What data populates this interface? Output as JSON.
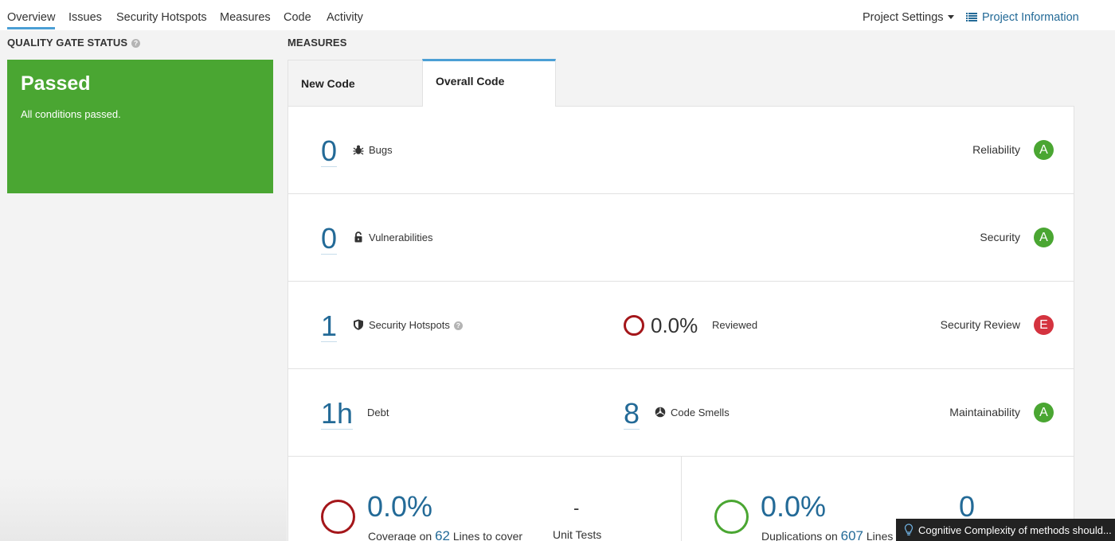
{
  "nav": {
    "items": [
      "Overview",
      "Issues",
      "Security Hotspots",
      "Measures",
      "Code",
      "Activity"
    ],
    "active": "Overview",
    "project_settings": "Project Settings",
    "project_information": "Project Information"
  },
  "quality_gate": {
    "section_title": "QUALITY GATE STATUS",
    "status": "Passed",
    "message": "All conditions passed.",
    "color": "#4aa632"
  },
  "measures": {
    "section_title": "MEASURES",
    "tabs": [
      "New Code",
      "Overall Code"
    ],
    "active_tab": "Overall Code",
    "reliability": {
      "value": "0",
      "label": "Bugs",
      "rating_label": "Reliability",
      "rating": "A",
      "rating_color": "#4aa632"
    },
    "security": {
      "value": "0",
      "label": "Vulnerabilities",
      "rating_label": "Security",
      "rating": "A",
      "rating_color": "#4aa632"
    },
    "hotspots": {
      "value": "1",
      "label": "Security Hotspots",
      "reviewed_pct": "0.0%",
      "reviewed_label": "Reviewed",
      "rating_label": "Security Review",
      "rating": "E",
      "rating_color": "#d4333f"
    },
    "maintainability": {
      "debt_value": "1h",
      "debt_label": "Debt",
      "smells_value": "8",
      "smells_label": "Code Smells",
      "rating_label": "Maintainability",
      "rating": "A",
      "rating_color": "#4aa632"
    },
    "coverage": {
      "pct": "0.0%",
      "text_before": "Coverage on",
      "lines": "62",
      "text_after": "Lines to cover",
      "unit_tests_value": "-",
      "unit_tests_label": "Unit Tests"
    },
    "duplications": {
      "pct": "0.0%",
      "text_before": "Duplications on",
      "lines": "607",
      "text_after": "Lines",
      "blocks_value": "0"
    }
  },
  "toast": {
    "text": "Cognitive Complexity of methods should..."
  },
  "colors": {
    "link": "#236a97",
    "accent": "#4b9fd5",
    "ring_bad": "#a4161a",
    "ring_good": "#4aa632"
  }
}
